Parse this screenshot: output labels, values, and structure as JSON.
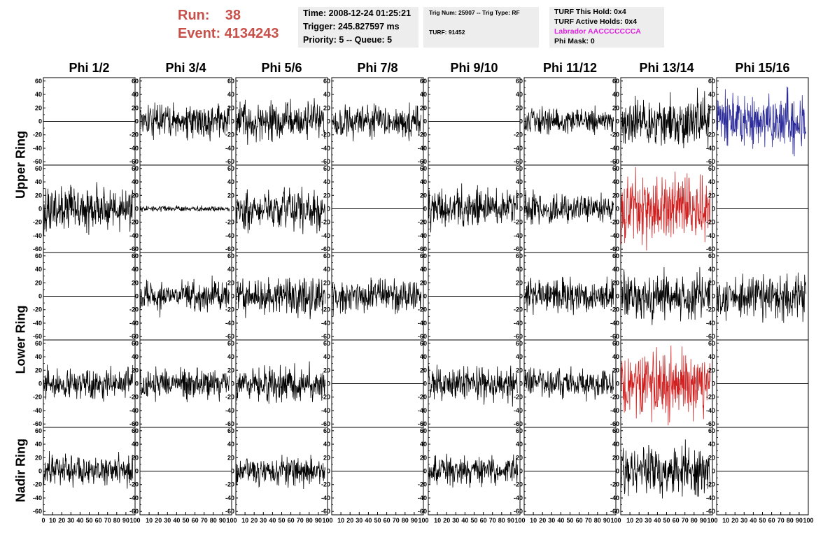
{
  "header": {
    "run_label": "Run:",
    "run_value": "38",
    "event_label": "Event:",
    "event_value": "4134243",
    "time": "Time: 2008-12-24 01:25:21",
    "trigger": "Trigger: 245.827597 ms",
    "priority": "Priority: 5 -- Queue: 5",
    "trig_num": "Trig Num: 25907 -- Trig Type: RF",
    "turf": "TURF: 91452",
    "turf_this_hold": "TURF This Hold: 0x4",
    "turf_active_holds": "TURF Active Holds: 0x4",
    "labrador": "Labrador AACCCCCCCA",
    "phi_mask": "Phi Mask: 0",
    "labrador_color": "#e020e0"
  },
  "columns": [
    "Phi 1/2",
    "Phi 3/4",
    "Phi 5/6",
    "Phi 7/8",
    "Phi 9/10",
    "Phi 11/12",
    "Phi 13/14",
    "Phi 15/16"
  ],
  "rings": [
    "Upper Ring",
    "Lower Ring",
    "Nadir Ring"
  ],
  "chart_data": {
    "type": "line",
    "xlim": [
      0,
      100
    ],
    "ylim": [
      -65,
      65
    ],
    "x_ticks": [
      "0",
      "10",
      "20",
      "30",
      "40",
      "50",
      "60",
      "70",
      "80",
      "90",
      "100"
    ],
    "y_ticks": [
      "60",
      "40",
      "20",
      "0",
      "-20",
      "-40",
      "-60"
    ],
    "colors": {
      "default": "#000000",
      "red": "#d02020",
      "blue": "#2a2a9a"
    },
    "rows": [
      {
        "panels": [
          {
            "amp": 0,
            "color": "default"
          },
          {
            "amp": 12,
            "color": "default"
          },
          {
            "amp": 14,
            "color": "default"
          },
          {
            "amp": 12,
            "color": "default"
          },
          {
            "amp": 0,
            "color": "default"
          },
          {
            "amp": 9,
            "color": "default"
          },
          {
            "amp": 18,
            "color": "default"
          },
          {
            "amp": 20,
            "color": "blue"
          }
        ]
      },
      {
        "panels": [
          {
            "amp": 15,
            "color": "default"
          },
          {
            "amp": 2,
            "color": "default"
          },
          {
            "amp": 14,
            "color": "default"
          },
          {
            "amp": 0,
            "color": "default"
          },
          {
            "amp": 14,
            "color": "default"
          },
          {
            "amp": 11,
            "color": "default"
          },
          {
            "amp": 24,
            "color": "red"
          },
          {
            "amp": 0,
            "color": "default"
          }
        ]
      },
      {
        "panels": [
          {
            "amp": 0,
            "color": "default"
          },
          {
            "amp": 11,
            "color": "default"
          },
          {
            "amp": 14,
            "color": "default"
          },
          {
            "amp": 12,
            "color": "default"
          },
          {
            "amp": 0,
            "color": "default"
          },
          {
            "amp": 12,
            "color": "default"
          },
          {
            "amp": 17,
            "color": "default"
          },
          {
            "amp": 15,
            "color": "default"
          }
        ]
      },
      {
        "panels": [
          {
            "amp": 11,
            "color": "default"
          },
          {
            "amp": 11,
            "color": "default"
          },
          {
            "amp": 13,
            "color": "default"
          },
          {
            "amp": 0,
            "color": "default"
          },
          {
            "amp": 12,
            "color": "default"
          },
          {
            "amp": 10,
            "color": "default"
          },
          {
            "amp": 24,
            "color": "red"
          },
          {
            "amp": 0,
            "color": "default"
          }
        ]
      },
      {
        "panels": [
          {
            "amp": 11,
            "color": "default"
          },
          {
            "amp": 0,
            "color": "default"
          },
          {
            "amp": 10,
            "color": "default"
          },
          {
            "amp": 0,
            "color": "default"
          },
          {
            "amp": 10,
            "color": "default"
          },
          {
            "amp": 0,
            "color": "default"
          },
          {
            "amp": 18,
            "color": "default"
          },
          {
            "amp": 0,
            "color": "default"
          }
        ]
      }
    ]
  }
}
